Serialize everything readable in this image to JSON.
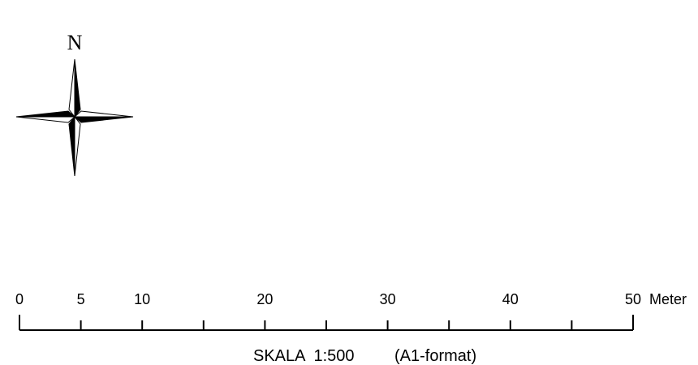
{
  "north_arrow": {
    "label": "N",
    "icon": "compass-rose-icon"
  },
  "scale_bar": {
    "unit_label": "Meter",
    "max_distance": 50,
    "labeled_ticks": [
      "0",
      "5",
      "10",
      "20",
      "30",
      "40",
      "50"
    ],
    "tick_values": [
      0,
      5,
      10,
      15,
      20,
      25,
      30,
      35,
      40,
      45,
      50
    ],
    "caption_scale": "SKALA  1:500",
    "caption_format": "(A1-format)"
  },
  "colors": {
    "ink": "#000000",
    "background": "#ffffff"
  }
}
